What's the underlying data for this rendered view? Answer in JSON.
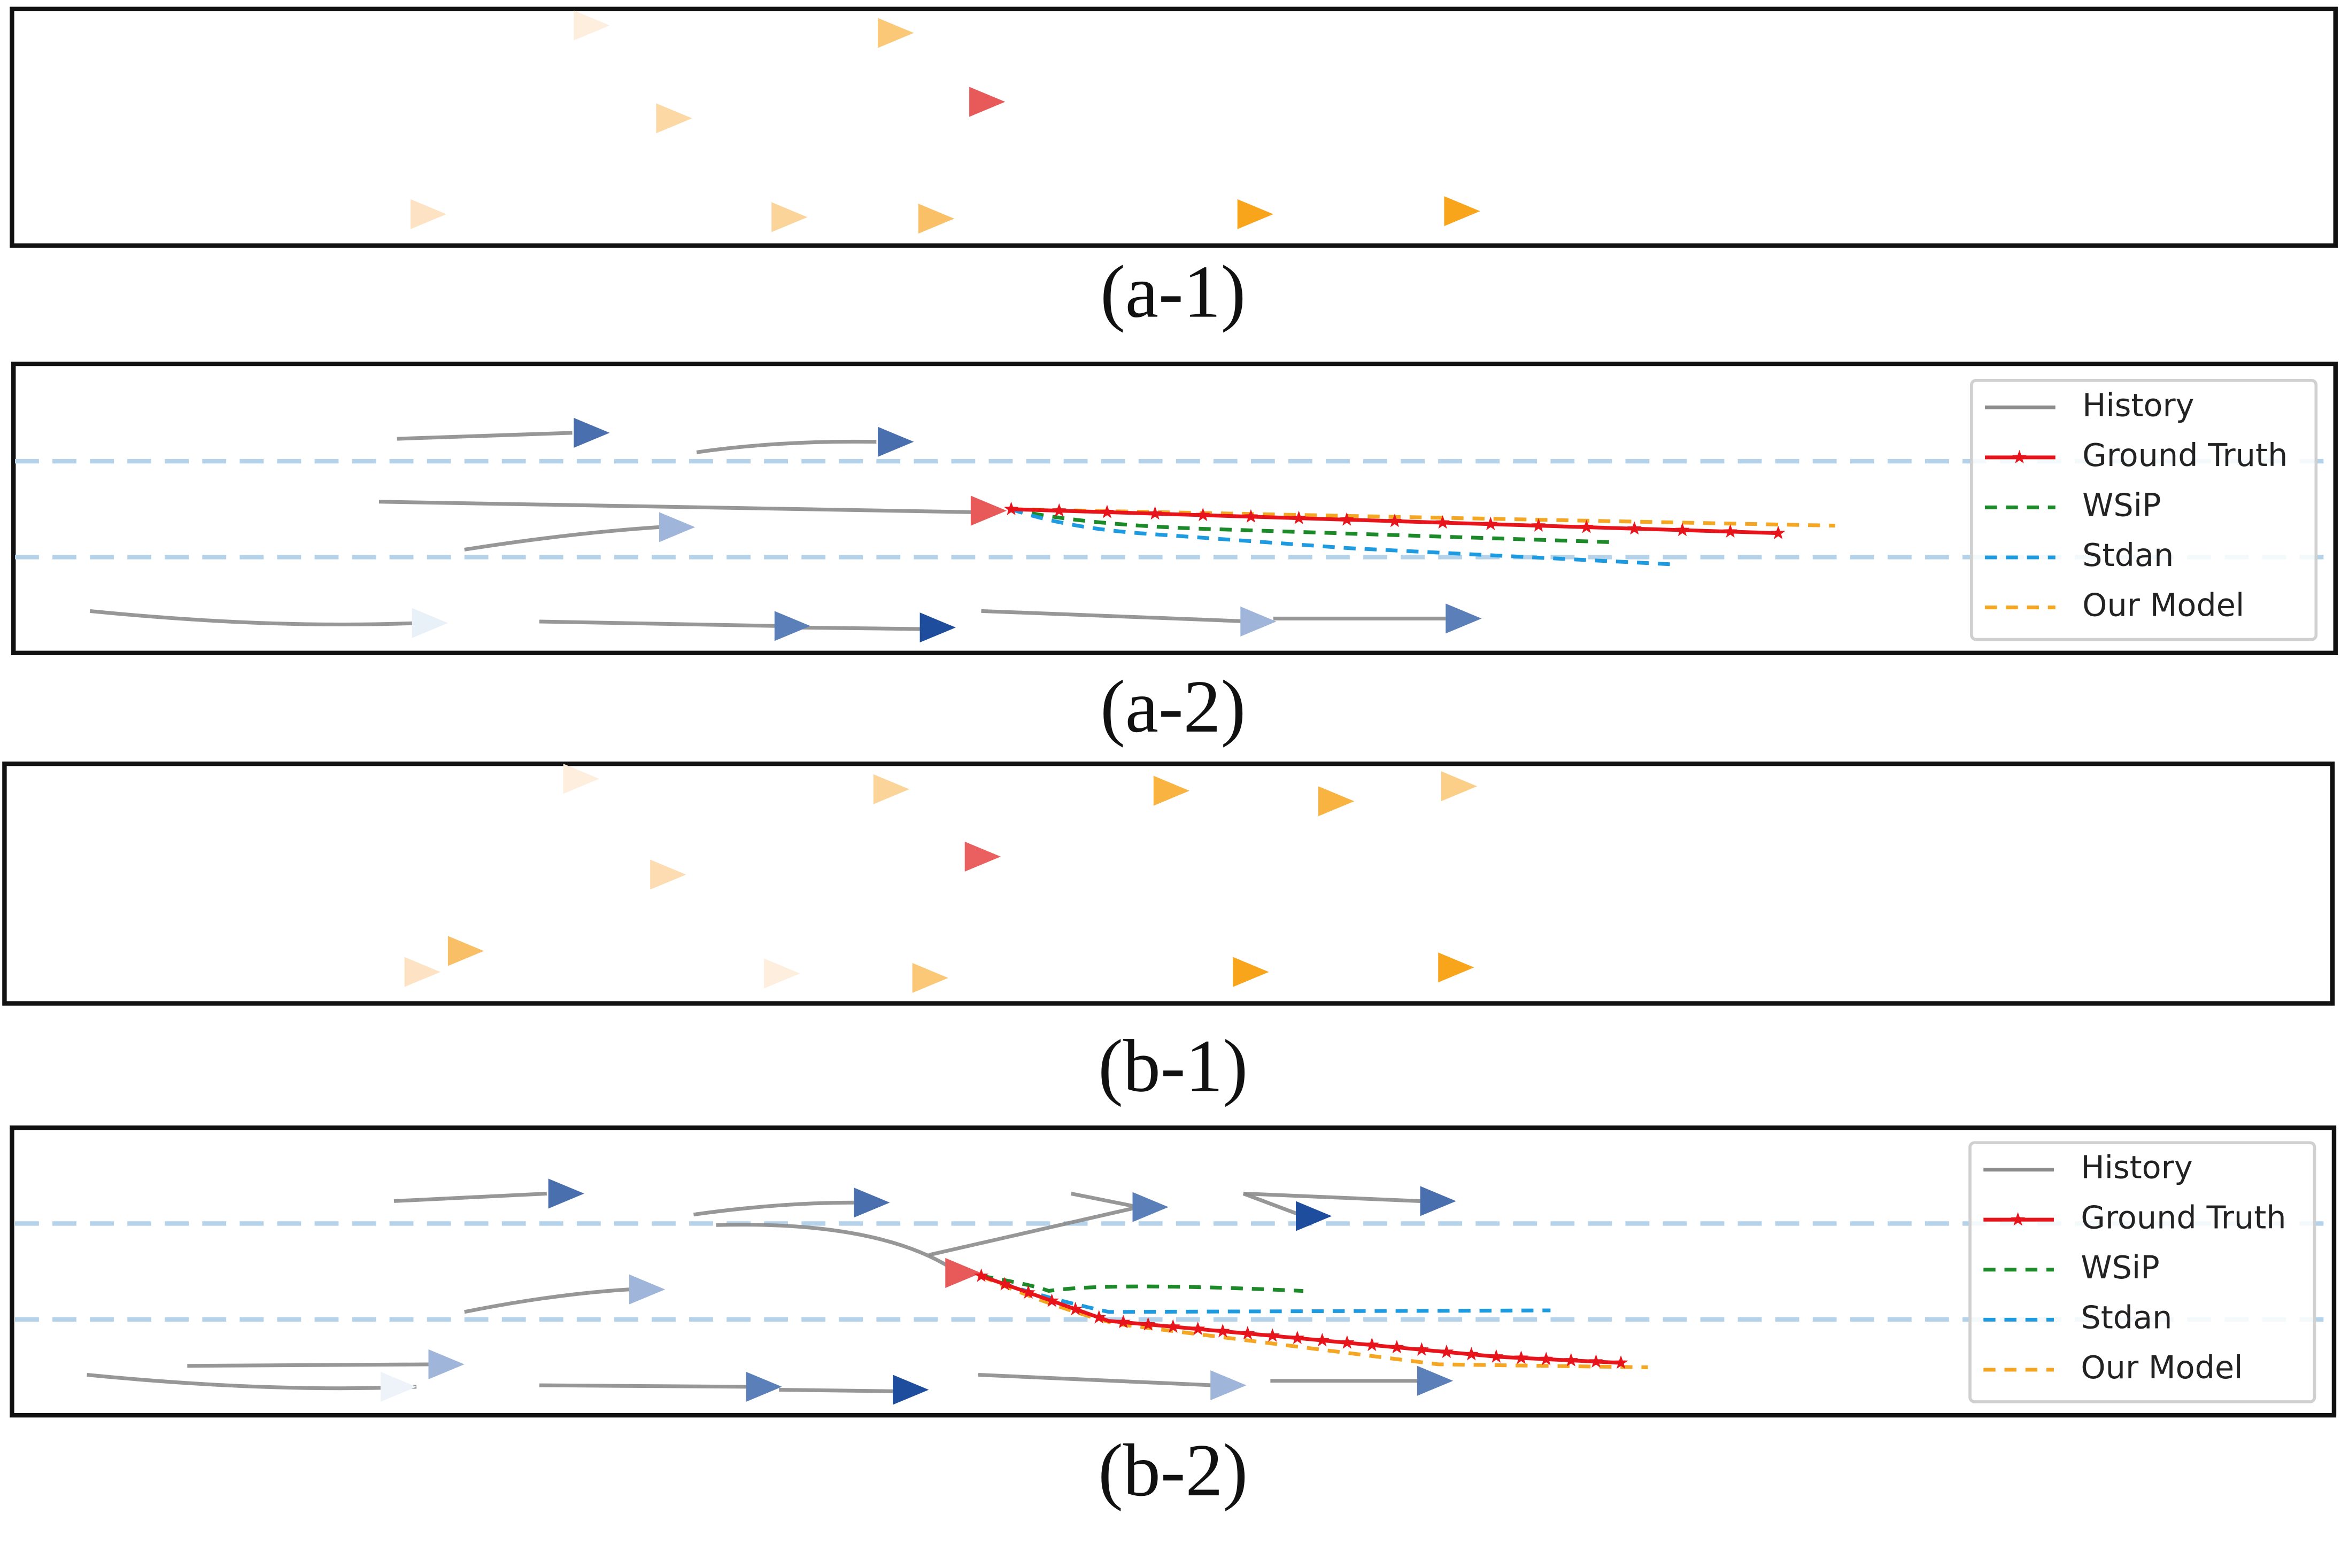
{
  "panels": [
    {
      "caption": "(a-1)"
    },
    {
      "caption": "(a-2)",
      "legend": [
        "History",
        "Ground Truth",
        "WSiP",
        "Stdan",
        "Our Model"
      ]
    },
    {
      "caption": "(b-1)"
    },
    {
      "caption": "(b-2)",
      "legend": [
        "History",
        "Ground Truth",
        "WSiP",
        "Stdan",
        "Our Model"
      ]
    }
  ]
}
